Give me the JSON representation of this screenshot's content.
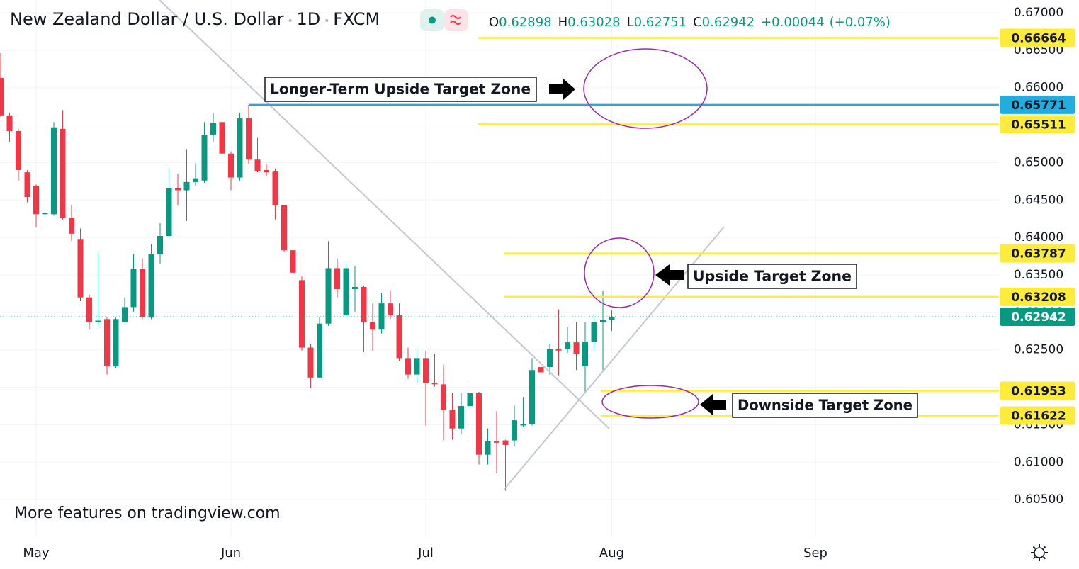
{
  "chart_data": {
    "type": "candlestick",
    "title": "New Zealand Dollar / U.S. Dollar",
    "interval": "1D",
    "source": "FXCM",
    "ohlc_labels": [
      "O",
      "H",
      "L",
      "C"
    ],
    "change": "+0.00044",
    "change_percent": "(+0.07%)",
    "categories": [
      null,
      null,
      null,
      null,
      "May",
      null,
      null,
      null,
      null,
      null,
      null,
      null,
      null,
      null,
      null,
      null,
      null,
      null,
      null,
      null,
      null,
      null,
      null,
      null,
      null,
      null,
      "Jun",
      null,
      null,
      null,
      null,
      null,
      null,
      null,
      null,
      null,
      null,
      null,
      null,
      null,
      null,
      null,
      null,
      null,
      null,
      null,
      null,
      null,
      "Jul",
      null,
      null,
      null,
      null,
      null,
      null,
      null,
      null,
      null,
      null,
      null,
      null,
      null,
      null,
      null,
      null,
      null,
      null,
      null,
      null,
      "Aug",
      null,
      null,
      null,
      null,
      null,
      null,
      null,
      null,
      null,
      null,
      null,
      null,
      null,
      null,
      null,
      null,
      null,
      null,
      null,
      null,
      null,
      null,
      "Sep",
      null,
      null,
      null,
      null,
      null,
      null,
      null,
      null,
      null,
      null,
      null,
      null,
      null,
      null,
      null,
      null,
      null,
      null,
      null,
      null
    ],
    "open": [
      0.6613,
      0.6563,
      0.6542,
      0.6487,
      0.6469,
      0.6431,
      0.6431,
      0.6545,
      0.6426,
      0.6398,
      0.632,
      0.6287,
      0.6291,
      0.6228,
      0.6287,
      0.6307,
      0.6358,
      0.6293,
      0.6378,
      0.6402,
      0.6466,
      0.6463,
      0.6474,
      0.6476,
      0.6537,
      0.6554,
      0.6512,
      0.648,
      0.6559,
      0.6504,
      0.649,
      0.6488,
      0.6443,
      0.6383,
      0.6343,
      0.6253,
      0.6213,
      0.6285,
      0.6359,
      0.6296,
      0.6331,
      0.6334,
      0.6287,
      0.6277,
      0.6312,
      0.6296,
      0.6239,
      0.6217,
      0.6239,
      0.6206,
      0.6204,
      0.617,
      0.6145,
      0.6175,
      0.6192,
      0.611,
      0.6128,
      0.6129,
      0.6129,
      0.6149,
      0.6151,
      0.6227,
      0.6227,
      0.6251,
      0.6251,
      0.626,
      0.6228,
      0.6261,
      0.6287,
      0.62898,
      null,
      null,
      null,
      null,
      null,
      null,
      null,
      null,
      null,
      null,
      null,
      null,
      null,
      null,
      null,
      null,
      null,
      null,
      null,
      null,
      null,
      null,
      null,
      null,
      null,
      null,
      null,
      null,
      null,
      null,
      null,
      null,
      null,
      null,
      null,
      null,
      null,
      null,
      null,
      null,
      null,
      null,
      null
    ],
    "high": [
      0.6646,
      0.6566,
      0.6545,
      0.649,
      0.6471,
      0.6473,
      0.6554,
      0.657,
      0.6443,
      0.6412,
      0.6324,
      0.6381,
      0.6294,
      0.6293,
      0.632,
      0.6378,
      0.6372,
      0.6391,
      0.6419,
      0.6492,
      0.6485,
      0.6518,
      0.6499,
      0.6554,
      0.6566,
      0.6566,
      0.6515,
      0.6566,
      0.6577,
      0.6533,
      0.6498,
      0.6492,
      0.6443,
      0.6395,
      0.6348,
      0.6258,
      0.6294,
      0.6395,
      0.6372,
      0.6365,
      0.6362,
      0.6336,
      0.6312,
      0.6326,
      0.6329,
      0.6312,
      0.6253,
      0.6251,
      0.6249,
      0.6244,
      0.623,
      0.6192,
      0.6192,
      0.6206,
      0.6194,
      0.6145,
      0.6168,
      0.613,
      0.6176,
      0.6187,
      0.6239,
      0.6272,
      0.6258,
      0.6304,
      0.628,
      0.6287,
      0.6287,
      0.6296,
      0.6329,
      0.63028,
      null,
      null,
      null,
      null,
      null,
      null,
      null,
      null,
      null,
      null,
      null,
      null,
      null,
      null,
      null,
      null,
      null,
      null,
      null,
      null,
      null,
      null,
      null,
      null,
      null,
      null,
      null,
      null,
      null,
      null,
      null,
      null,
      null,
      null,
      null,
      null,
      null,
      null,
      null,
      null,
      null,
      null,
      null
    ],
    "low": [
      0.6561,
      0.6528,
      0.6476,
      0.6447,
      0.6414,
      0.6412,
      0.6429,
      0.6424,
      0.6395,
      0.6315,
      0.6277,
      0.628,
      0.6217,
      0.6225,
      0.6287,
      0.6301,
      0.6291,
      0.6291,
      0.6365,
      0.64,
      0.6443,
      0.6422,
      0.6469,
      0.6473,
      0.6528,
      0.6512,
      0.6463,
      0.6476,
      0.6498,
      0.6487,
      0.6482,
      0.6424,
      0.6381,
      0.6348,
      0.6249,
      0.6199,
      0.6213,
      0.6282,
      0.632,
      0.6294,
      0.6301,
      0.6247,
      0.6249,
      0.6272,
      0.6291,
      0.6235,
      0.6211,
      0.6206,
      0.6149,
      0.6201,
      0.6129,
      0.613,
      0.6138,
      0.613,
      0.6097,
      0.6097,
      0.6085,
      0.6062,
      0.6121,
      0.6147,
      0.6149,
      0.6216,
      0.6217,
      0.6216,
      0.6246,
      0.6223,
      0.6192,
      0.6249,
      0.6223,
      0.62751,
      null,
      null,
      null,
      null,
      null,
      null,
      null,
      null,
      null,
      null,
      null,
      null,
      null,
      null,
      null,
      null,
      null,
      null,
      null,
      null,
      null,
      null,
      null,
      null,
      null,
      null,
      null,
      null,
      null,
      null,
      null,
      null,
      null,
      null,
      null,
      null,
      null,
      null,
      null,
      null,
      null,
      null,
      null
    ],
    "close": [
      0.6563,
      0.6542,
      0.649,
      0.6454,
      0.6431,
      0.6433,
      0.6547,
      0.6426,
      0.6405,
      0.632,
      0.6287,
      0.6289,
      0.6228,
      0.6291,
      0.6307,
      0.6358,
      0.6294,
      0.6378,
      0.6402,
      0.6466,
      0.6463,
      0.6474,
      0.6479,
      0.6537,
      0.6553,
      0.6512,
      0.648,
      0.6559,
      0.6504,
      0.6488,
      0.6487,
      0.6443,
      0.6383,
      0.6353,
      0.6253,
      0.6213,
      0.6285,
      0.6359,
      0.6331,
      0.6359,
      0.6334,
      0.6287,
      0.6277,
      0.6312,
      0.6296,
      0.6239,
      0.6217,
      0.6239,
      0.6206,
      0.6204,
      0.617,
      0.6145,
      0.6175,
      0.6192,
      0.611,
      0.6128,
      0.6126,
      0.6123,
      0.6156,
      0.6151,
      0.6223,
      0.622,
      0.6251,
      0.6249,
      0.626,
      0.6244,
      0.6261,
      0.6287,
      0.629,
      0.62942,
      null,
      null,
      null,
      null,
      null,
      null,
      null,
      null,
      null,
      null,
      null,
      null,
      null,
      null,
      null,
      null,
      null,
      null,
      null,
      null,
      null,
      null,
      null,
      null,
      null,
      null,
      null,
      null,
      null,
      null,
      null,
      null,
      null,
      null,
      null,
      null,
      null,
      null,
      null,
      null,
      null,
      null,
      null
    ],
    "up_color": "#089981",
    "down_color": "#f23645",
    "ylim": [
      0.6,
      0.6717
    ],
    "yticks": [
      {
        "value": 0.605,
        "label": "0.60500"
      },
      {
        "value": 0.61,
        "label": "0.61000"
      },
      {
        "value": 0.615,
        "label": "0.61500"
      },
      {
        "value": 0.62,
        "label": "0.62000"
      },
      {
        "value": 0.625,
        "label": "0.62500"
      },
      {
        "value": 0.63,
        "label": "0.63000"
      },
      {
        "value": 0.635,
        "label": "0.63500"
      },
      {
        "value": 0.64,
        "label": "0.64000"
      },
      {
        "value": 0.645,
        "label": "0.64500"
      },
      {
        "value": 0.65,
        "label": "0.65000"
      },
      {
        "value": 0.655,
        "label": "0.65500"
      },
      {
        "value": 0.66,
        "label": "0.66000"
      },
      {
        "value": 0.665,
        "label": "0.66500"
      },
      {
        "value": 0.67,
        "label": "0.67000"
      }
    ],
    "grid": true,
    "levels": [
      {
        "value": 0.66664,
        "color": "#ffeb3b"
      },
      {
        "value": 0.65771,
        "color": "#22ade0"
      },
      {
        "value": 0.65511,
        "color": "#ffeb3b"
      },
      {
        "value": 0.63787,
        "color": "#ffeb3b"
      },
      {
        "value": 0.63208,
        "color": "#ffeb3b"
      },
      {
        "value": 0.61953,
        "color": "#ffeb3b"
      },
      {
        "value": 0.61622,
        "color": "#ffeb3b"
      }
    ],
    "last_price_color": "#089981",
    "annotations": [
      "Longer-Term Upside Target Zone",
      "Upside Target Zone",
      "Downside Target Zone"
    ],
    "watermark": "More features on tradingview.com"
  }
}
